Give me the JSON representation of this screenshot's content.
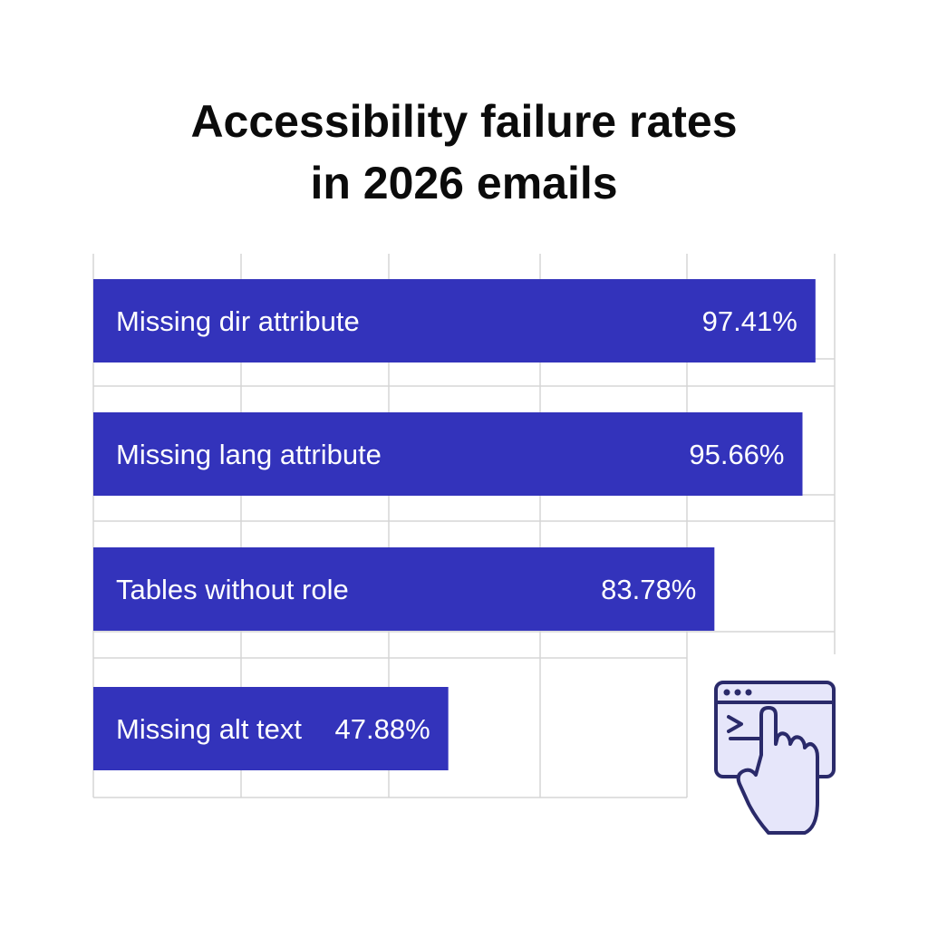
{
  "chart_data": {
    "type": "bar",
    "orientation": "horizontal",
    "title_lines": [
      "Accessibility failure rates",
      "in 2026 emails"
    ],
    "categories": [
      "Missing dir attribute",
      "Missing lang attribute",
      "Tables without role",
      "Missing alt text"
    ],
    "values": [
      97.41,
      95.66,
      83.78,
      47.88
    ],
    "value_labels": [
      "97.41%",
      "95.66%",
      "83.78%",
      "47.88%"
    ],
    "xlim": [
      0,
      100
    ],
    "grid": true,
    "bar_color": "#3333bb"
  },
  "illustration": {
    "icon": "browser-terminal-pointer-icon",
    "accent": "#e6e6fa",
    "stroke": "#2a2a6a"
  }
}
